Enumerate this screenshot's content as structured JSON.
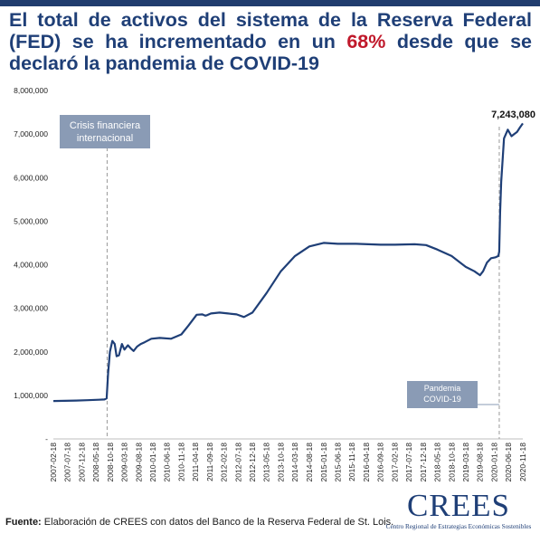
{
  "title": {
    "before": "El total de activos del sistema de la Reserva Federal (FED) se ha incrementado en un ",
    "highlight": "68%",
    "after": " desde que se declaró la pandemia de COVID-19"
  },
  "colors": {
    "brand": "#1f3f77",
    "highlight": "#c0192b",
    "line": "#1f3f77",
    "annotation_box": "#8a9bb5"
  },
  "chart_data": {
    "type": "line",
    "title": "",
    "xlabel": "",
    "ylabel": "",
    "ylim": [
      0,
      8000000
    ],
    "yticks": [
      0,
      1000000,
      2000000,
      3000000,
      4000000,
      5000000,
      6000000,
      7000000,
      8000000
    ],
    "ytick_labels": [
      "-",
      "1,000,000",
      "2,000,000",
      "3,000,000",
      "4,000,000",
      "5,000,000",
      "6,000,000",
      "7,000,000",
      "8,000,000"
    ],
    "xlim": [
      "2007-02-18",
      "2020-11-18"
    ],
    "xtick_labels": [
      "2007-02-18",
      "2007-07-18",
      "2007-12-18",
      "2008-05-18",
      "2008-10-18",
      "2009-03-18",
      "2009-08-18",
      "2010-01-18",
      "2010-06-18",
      "2010-11-18",
      "2011-04-18",
      "2011-09-18",
      "2012-02-18",
      "2012-07-18",
      "2012-12-18",
      "2013-05-18",
      "2013-10-18",
      "2014-03-18",
      "2014-08-18",
      "2015-01-18",
      "2015-06-18",
      "2015-11-18",
      "2016-04-18",
      "2016-09-18",
      "2017-02-18",
      "2017-07-18",
      "2017-12-18",
      "2018-05-18",
      "2018-10-18",
      "2019-03-18",
      "2019-08-18",
      "2020-01-18",
      "2020-06-18",
      "2020-11-18"
    ],
    "grid": false,
    "legend": "none",
    "series": [
      {
        "x": [
          "2007-02-18",
          "2007-06-18",
          "2007-10-18",
          "2008-02-18",
          "2008-06-18",
          "2008-08-18",
          "2008-09-10",
          "2008-09-25",
          "2008-10-15",
          "2008-11-10",
          "2008-12-05",
          "2008-12-25",
          "2009-01-20",
          "2009-02-20",
          "2009-03-20",
          "2009-04-25",
          "2009-05-25",
          "2009-06-25",
          "2009-08-01",
          "2009-09-10",
          "2009-10-20",
          "2010-01-01",
          "2010-04-01",
          "2010-08-01",
          "2010-11-18",
          "2011-02-01",
          "2011-05-01",
          "2011-07-01",
          "2011-08-01",
          "2011-08-20",
          "2011-10-01",
          "2012-01-01",
          "2012-04-01",
          "2012-07-01",
          "2012-09-18",
          "2012-12-18",
          "2013-05-18",
          "2013-10-18",
          "2014-03-18",
          "2014-08-18",
          "2015-01-18",
          "2015-06-18",
          "2016-01-01",
          "2016-09-18",
          "2017-02-18",
          "2017-09-18",
          "2018-01-18",
          "2018-05-18",
          "2018-10-18",
          "2019-03-18",
          "2019-06-18",
          "2019-08-18",
          "2019-09-20",
          "2019-11-01",
          "2019-12-15",
          "2020-02-01",
          "2020-03-01",
          "2020-03-10",
          "2020-03-20",
          "2020-04-01",
          "2020-05-01",
          "2020-06-10",
          "2020-07-20",
          "2020-08-18",
          "2020-09-18",
          "2020-10-18",
          "2020-11-18"
        ],
        "values": [
          870000,
          875000,
          880000,
          890000,
          900000,
          905000,
          930000,
          1500000,
          2000000,
          2250000,
          2180000,
          1900000,
          1920000,
          2180000,
          2050000,
          2150000,
          2080000,
          2020000,
          2120000,
          2180000,
          2220000,
          2300000,
          2320000,
          2300000,
          2400000,
          2600000,
          2850000,
          2860000,
          2830000,
          2840000,
          2880000,
          2900000,
          2880000,
          2860000,
          2800000,
          2900000,
          3350000,
          3850000,
          4200000,
          4420000,
          4500000,
          4480000,
          4480000,
          4460000,
          4460000,
          4470000,
          4450000,
          4350000,
          4200000,
          3950000,
          3850000,
          3760000,
          3850000,
          4050000,
          4150000,
          4170000,
          4200000,
          4300000,
          5200000,
          5900000,
          6900000,
          7100000,
          6950000,
          7000000,
          7050000,
          7150000,
          7243080
        ]
      }
    ],
    "annotations": [
      {
        "id": "crisis",
        "label": "Crisis financiera internacional",
        "lines": [
          "Crisis financiera",
          "internacional"
        ],
        "date": "2008-09-15"
      },
      {
        "id": "pandemic",
        "label": "Pandemia COVID-19",
        "lines": [
          "Pandemia",
          "COVID-19"
        ],
        "date": "2020-03-11"
      },
      {
        "id": "peak",
        "label": "7,243,080",
        "date": "2020-11-18",
        "value": 7243080
      }
    ]
  },
  "footer": {
    "source_label": "Fuente:",
    "source_text": " Elaboración de CREES con datos del Banco de la Reserva Federal de St. Lois."
  },
  "logo": {
    "name": "CREES",
    "subtitle": "Centro Regional de Estrategias Económicas Sostenibles"
  }
}
